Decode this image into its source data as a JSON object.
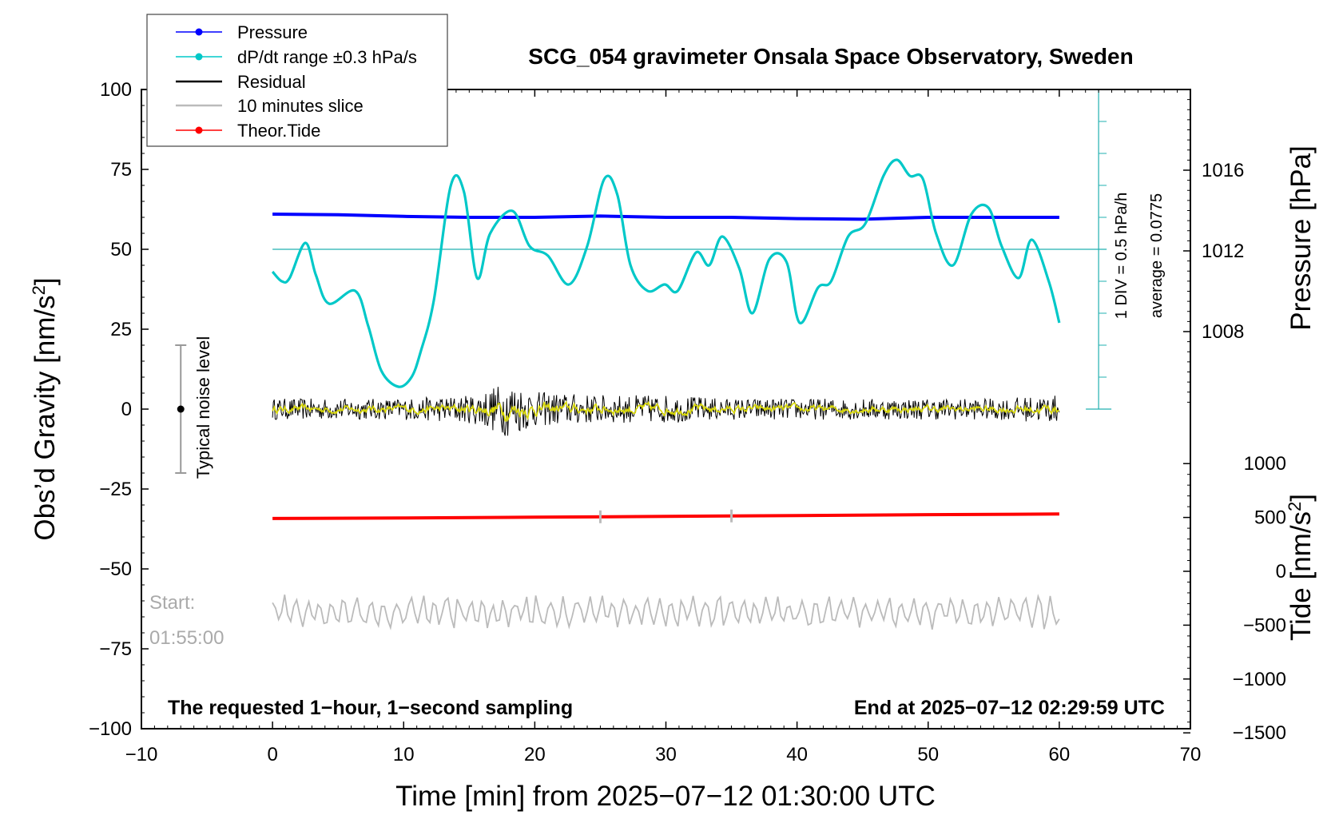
{
  "chart_data": {
    "type": "line",
    "title": "SCG_054 gravimeter Onsala Space Observatory, Sweden",
    "xlabel": "Time [min] from 2025−07−12 01:30:00 UTC",
    "xlim": [
      -10,
      70
    ],
    "x_ticks": [
      -10,
      0,
      10,
      20,
      30,
      40,
      50,
      60,
      70
    ],
    "x_tick_labels": [
      "−10",
      "0",
      "10",
      "20",
      "30",
      "40",
      "50",
      "60",
      "70"
    ],
    "y_left": {
      "label": "Obs’d Gravity [nm/s",
      "label_sup": "2",
      "label_end": "]",
      "lim": [
        -100,
        100
      ],
      "ticks": [
        100,
        75,
        50,
        25,
        0,
        -25,
        -50,
        -75,
        -100
      ],
      "tick_labels": [
        "100",
        "75",
        "50",
        "25",
        "0",
        "−25",
        "−50",
        "−75",
        "−100"
      ]
    },
    "y_pressure": {
      "label": "Pressure [hPa]",
      "lim": [
        1004,
        1020
      ],
      "ticks": [
        1016,
        1012,
        1008
      ],
      "tick_labels": [
        "1016",
        "1012",
        "1008"
      ]
    },
    "y_tide": {
      "label": "Tide [nm/s",
      "label_sup": "2",
      "label_end": "]",
      "lim": [
        -1500,
        1000
      ],
      "ticks": [
        1000,
        500,
        0,
        -500,
        -1000,
        -1500
      ],
      "tick_labels": [
        "1000",
        "500",
        "0",
        "−500",
        "−1000",
        "−1500"
      ]
    },
    "legend": {
      "position": "top-left",
      "entries": [
        {
          "label": "Pressure",
          "color": "#0000ff",
          "marker": true
        },
        {
          "label": "dP/dt range ±0.3 hPa/s",
          "color": "#00c8c8",
          "marker": true
        },
        {
          "label": "Residual",
          "color": "#000000",
          "marker": false
        },
        {
          "label": "10 minutes slice",
          "color": "#bbbbbb",
          "marker": false
        },
        {
          "label": "Theor.Tide",
          "color": "#ff0000",
          "marker": true
        }
      ]
    },
    "series": [
      {
        "name": "Pressure",
        "color": "#0000ff",
        "unit": "gravity-axis units",
        "x": [
          0,
          5,
          10,
          15,
          20,
          25,
          30,
          35,
          40,
          45,
          50,
          55,
          60
        ],
        "y": [
          61,
          60.8,
          60.3,
          60,
          60,
          60.4,
          60,
          60,
          59.6,
          59.4,
          60,
          60,
          60
        ]
      },
      {
        "name": "dP/dt",
        "color": "#00c8c8",
        "unit": "gravity-axis units",
        "x": [
          0,
          0.7,
          1.3,
          2.5,
          3.3,
          4.3,
          6.3,
          7.3,
          8.3,
          9.6,
          10.6,
          11.3,
          12.3,
          13.6,
          14.6,
          15.6,
          16.6,
          18.3,
          19.6,
          21.0,
          22.6,
          24.0,
          25.3,
          26.3,
          27.3,
          28.6,
          29.9,
          30.9,
          32.3,
          33.3,
          34.3,
          35.6,
          36.6,
          37.9,
          39.2,
          40.2,
          41.6,
          42.6,
          43.9,
          45.2,
          46.6,
          47.6,
          48.6,
          49.6,
          50.6,
          51.9,
          53.3,
          54.6,
          55.6,
          56.9,
          57.9,
          59.2,
          60
        ],
        "y": [
          43,
          40,
          41,
          52,
          42,
          33,
          37,
          26,
          12,
          7,
          10,
          18,
          34,
          70,
          68,
          41,
          55,
          62,
          51,
          48,
          39,
          51,
          72,
          67,
          45,
          37,
          39,
          37,
          49,
          45,
          54,
          44,
          30,
          47,
          46,
          27,
          38,
          40,
          54,
          58,
          73,
          78,
          73,
          72,
          55,
          45,
          61,
          63,
          51,
          41,
          53,
          40,
          27
        ]
      },
      {
        "name": "Residual",
        "color": "#000000",
        "unit": "nm/s2",
        "x": [
          0,
          5,
          10,
          15,
          18,
          20,
          25,
          30,
          35,
          40,
          45,
          50,
          55,
          60
        ],
        "amplitude": [
          3,
          3,
          3,
          4,
          8,
          5,
          4,
          4,
          3,
          3,
          3,
          3,
          3,
          4
        ]
      },
      {
        "name": "10 minutes slice",
        "color": "#bbbbbb",
        "unit": "gravity-axis units",
        "baseline": -63.5,
        "amplitude": 4
      },
      {
        "name": "Theor.Tide",
        "color": "#ff0000",
        "unit": "nm/s2 (tide axis)",
        "x": [
          0,
          10,
          20,
          30,
          40,
          50,
          60
        ],
        "y": [
          490,
          495,
          502,
          510,
          518,
          526,
          532
        ]
      }
    ],
    "dpdt_axis": {
      "label1": "1 DIV = 0.5 hPa/h",
      "label2": "average = 0.0775",
      "zero_line": 50,
      "x_position": 63
    },
    "noise_bar": {
      "label": "Typical noise level",
      "x": -7,
      "y_low": -20,
      "y_high": 20,
      "y_center": 0
    },
    "slice_marks_x": [
      25,
      35
    ],
    "annotations": {
      "start_label": "Start:",
      "start_time": "01:55:00",
      "bottom_left": "The requested 1−hour, 1−second sampling",
      "bottom_right": "End at 2025−07−12 02:29:59 UTC"
    }
  }
}
